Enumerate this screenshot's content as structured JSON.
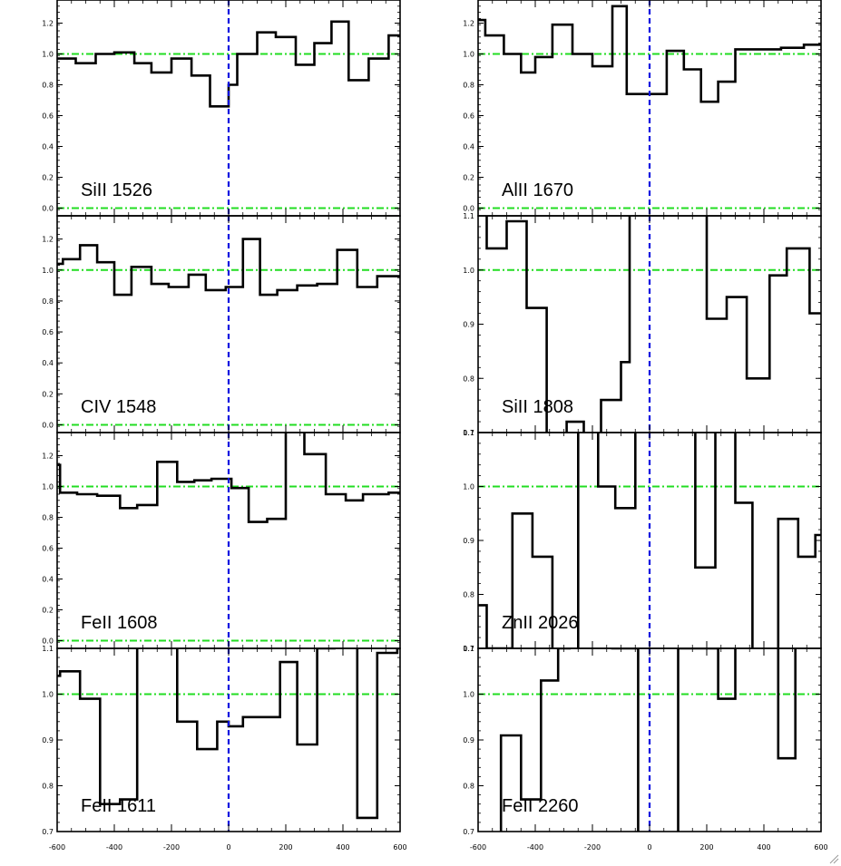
{
  "chart_data": [
    {
      "type": "line",
      "label": "SiII 1526",
      "xlim": [
        -600,
        600
      ],
      "ylim": [
        -0.05,
        1.35
      ],
      "yticks": [
        0.0,
        0.2,
        0.4,
        0.6,
        0.8,
        1.0,
        1.2
      ],
      "ytick_labels": [
        "0.0",
        "0.2",
        "0.4",
        "0.6",
        "0.8",
        "1.0",
        "1.2"
      ],
      "show_xtick_labels": false,
      "reference_lines": {
        "velocity_zero": 0,
        "continuum": 1.0,
        "zero": 0.0
      },
      "x": [
        -600,
        -535,
        -465,
        -400,
        -330,
        -270,
        -200,
        -130,
        -65,
        0,
        30,
        100,
        165,
        235,
        300,
        360,
        420,
        490,
        560,
        600
      ],
      "y": [
        0.97,
        0.94,
        1.0,
        1.01,
        0.94,
        0.88,
        0.97,
        0.86,
        0.66,
        0.8,
        1.0,
        1.14,
        1.11,
        0.93,
        1.07,
        1.21,
        0.83,
        0.97,
        1.12,
        1.12
      ]
    },
    {
      "type": "line",
      "label": "AlII 1670",
      "xlim": [
        -600,
        600
      ],
      "ylim": [
        -0.05,
        1.35
      ],
      "yticks": [
        0.0,
        0.2,
        0.4,
        0.6,
        0.8,
        1.0,
        1.2
      ],
      "ytick_labels": [
        "0.0",
        "0.2",
        "0.4",
        "0.6",
        "0.8",
        "1.0",
        "1.2"
      ],
      "show_xtick_labels": false,
      "reference_lines": {
        "velocity_zero": 0,
        "continuum": 1.0,
        "zero": 0.0
      },
      "x": [
        -600,
        -575,
        -510,
        -450,
        -400,
        -340,
        -270,
        -200,
        -130,
        -80,
        -10,
        60,
        120,
        180,
        240,
        300,
        380,
        460,
        540,
        570
      ],
      "y": [
        1.22,
        1.12,
        1.0,
        0.88,
        0.98,
        1.19,
        1.0,
        0.92,
        1.31,
        0.74,
        0.74,
        1.02,
        0.9,
        0.69,
        0.82,
        1.03,
        1.03,
        1.04,
        1.06,
        1.06
      ]
    },
    {
      "type": "line",
      "label": "CIV 1548",
      "xlim": [
        -600,
        600
      ],
      "ylim": [
        -0.05,
        1.35
      ],
      "yticks": [
        0.0,
        0.2,
        0.4,
        0.6,
        0.8,
        1.0,
        1.2
      ],
      "ytick_labels": [
        "0.0",
        "0.2",
        "0.4",
        "0.6",
        "0.8",
        "1.0",
        "1.2"
      ],
      "show_xtick_labels": false,
      "reference_lines": {
        "velocity_zero": 0,
        "continuum": 1.0,
        "zero": 0.0
      },
      "x": [
        -600,
        -580,
        -520,
        -460,
        -400,
        -340,
        -270,
        -210,
        -140,
        -80,
        -10,
        50,
        110,
        170,
        240,
        310,
        380,
        450,
        520,
        570
      ],
      "y": [
        1.04,
        1.07,
        1.16,
        1.05,
        0.84,
        1.02,
        0.91,
        0.89,
        0.97,
        0.87,
        0.89,
        1.2,
        0.84,
        0.87,
        0.9,
        0.91,
        1.13,
        0.89,
        0.96,
        0.96
      ]
    },
    {
      "type": "line",
      "label": "SiII 1808",
      "xlim": [
        -600,
        600
      ],
      "ylim": [
        0.7,
        1.1
      ],
      "yticks": [
        0.7,
        0.8,
        0.9,
        1.0,
        1.1
      ],
      "ytick_labels": [
        "0.7",
        "0.8",
        "0.9",
        "1.0",
        "1.1"
      ],
      "show_xtick_labels": false,
      "reference_lines": {
        "velocity_zero": 0,
        "continuum": 1.0
      },
      "x": [
        -600,
        -570,
        -500,
        -430,
        -360,
        -290,
        -230,
        -170,
        -100,
        -70,
        70,
        200,
        270,
        340,
        420,
        480,
        560,
        580
      ],
      "y": [
        1.2,
        1.04,
        1.09,
        0.93,
        0.65,
        0.72,
        0.6,
        0.76,
        0.83,
        1.3,
        1.3,
        0.91,
        0.95,
        0.8,
        0.99,
        1.04,
        0.92,
        0.92
      ]
    },
    {
      "type": "line",
      "label": "FeII 1608",
      "xlim": [
        -600,
        600
      ],
      "ylim": [
        -0.05,
        1.35
      ],
      "yticks": [
        0.0,
        0.2,
        0.4,
        0.6,
        0.8,
        1.0,
        1.2
      ],
      "ytick_labels": [
        "0.0",
        "0.2",
        "0.4",
        "0.6",
        "0.8",
        "1.0",
        "1.2"
      ],
      "show_xtick_labels": false,
      "reference_lines": {
        "velocity_zero": 0,
        "continuum": 1.0,
        "zero": 0.0
      },
      "x": [
        -600,
        -590,
        -530,
        -460,
        -380,
        -320,
        -250,
        -180,
        -120,
        -60,
        10,
        70,
        135,
        200,
        265,
        340,
        410,
        470,
        560,
        580
      ],
      "y": [
        1.14,
        0.96,
        0.95,
        0.94,
        0.86,
        0.88,
        1.16,
        1.03,
        1.04,
        1.05,
        0.99,
        0.77,
        0.79,
        1.37,
        1.21,
        0.95,
        0.91,
        0.95,
        0.96,
        0.96
      ]
    },
    {
      "type": "line",
      "label": "ZnII 2026",
      "xlim": [
        -600,
        600
      ],
      "ylim": [
        0.7,
        1.1
      ],
      "yticks": [
        0.7,
        0.8,
        0.9,
        1.0,
        1.1
      ],
      "ytick_labels": [
        "0.7",
        "0.8",
        "0.9",
        "1.0",
        "1.1"
      ],
      "show_xtick_labels": false,
      "reference_lines": {
        "velocity_zero": 0,
        "continuum": 1.0
      },
      "x": [
        -600,
        -570,
        -530,
        -480,
        -410,
        -340,
        -250,
        -180,
        -120,
        -50,
        160,
        230,
        300,
        360,
        450,
        520,
        580
      ],
      "y": [
        0.78,
        0.7,
        0.7,
        0.95,
        0.87,
        0.6,
        1.3,
        1.0,
        0.96,
        1.3,
        0.85,
        1.3,
        0.97,
        0.6,
        0.94,
        0.87,
        0.91
      ]
    },
    {
      "type": "line",
      "label": "FeII 1611",
      "xlim": [
        -600,
        600
      ],
      "ylim": [
        0.7,
        1.1
      ],
      "yticks": [
        0.7,
        0.8,
        0.9,
        1.0,
        1.1
      ],
      "ytick_labels": [
        "0.7",
        "0.8",
        "0.9",
        "1.0",
        "1.1"
      ],
      "show_xtick_labels": true,
      "xticks": [
        -600,
        -400,
        -200,
        0,
        200,
        400,
        600
      ],
      "xtick_labels": [
        "-600",
        "-400",
        "-200",
        "0",
        "200",
        "400",
        "600"
      ],
      "reference_lines": {
        "velocity_zero": 0,
        "continuum": 1.0
      },
      "x": [
        -600,
        -590,
        -520,
        -450,
        -380,
        -320,
        -180,
        -110,
        -40,
        0,
        50,
        120,
        180,
        240,
        310,
        370,
        450,
        520,
        590
      ],
      "y": [
        1.04,
        1.05,
        0.99,
        0.76,
        0.77,
        1.3,
        0.94,
        0.88,
        0.94,
        0.93,
        0.95,
        0.95,
        1.07,
        0.89,
        1.1,
        1.2,
        0.73,
        1.09,
        1.1
      ]
    },
    {
      "type": "line",
      "label": "FeII 2260",
      "xlim": [
        -600,
        600
      ],
      "ylim": [
        0.7,
        1.1
      ],
      "yticks": [
        0.7,
        0.8,
        0.9,
        1.0,
        1.1
      ],
      "ytick_labels": [
        "0.7",
        "0.8",
        "0.9",
        "1.0",
        "1.1"
      ],
      "show_xtick_labels": true,
      "xticks": [
        -600,
        -400,
        -200,
        0,
        200,
        400,
        600
      ],
      "xtick_labels": [
        "-600",
        "-400",
        "-200",
        "0",
        "200",
        "400",
        "600"
      ],
      "reference_lines": {
        "velocity_zero": 0,
        "continuum": 1.0
      },
      "x": [
        -600,
        -520,
        -450,
        -380,
        -320,
        -280,
        -220,
        -130,
        -50,
        -40,
        90,
        100,
        180,
        240,
        300,
        360,
        450,
        510
      ],
      "y": [
        0.6,
        0.91,
        0.77,
        1.03,
        1.1,
        1.3,
        1.3,
        1.1,
        1.1,
        0.6,
        0.6,
        1.1,
        1.1,
        0.99,
        1.3,
        1.3,
        0.86,
        1.3
      ]
    }
  ],
  "colors": {
    "data": "#000000",
    "velocity_zero_line": "#0a10e0",
    "continuum_line": "#22dd22",
    "background": "#ffffff"
  },
  "icons": {
    "resize_grip": "resize-grip-icon"
  }
}
